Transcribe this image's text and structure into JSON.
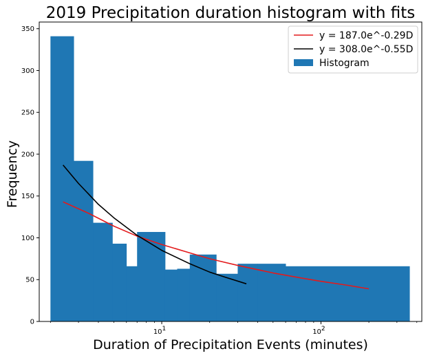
{
  "chart_data": {
    "type": "bar",
    "title": "2019 Precipitation duration histogram with fits",
    "xlabel": "Duration of Precipitation Events (minutes)",
    "ylabel": "Frequency",
    "x_scale": "log",
    "xlim": [
      1.7,
      430
    ],
    "ylim": [
      0,
      358
    ],
    "y_ticks": [
      0,
      50,
      100,
      150,
      200,
      250,
      300,
      350
    ],
    "x_ticks": [
      {
        "value": 10,
        "base": "10",
        "exp": "1"
      },
      {
        "value": 100,
        "base": "10",
        "exp": "2"
      }
    ],
    "grid": false,
    "legend_position": "top-right",
    "histogram": {
      "name": "Histogram",
      "color": "#1f77b4",
      "bins": [
        {
          "x0": 2.0,
          "x1": 2.8,
          "value": 341
        },
        {
          "x0": 2.8,
          "x1": 3.7,
          "value": 192
        },
        {
          "x0": 3.7,
          "x1": 4.9,
          "value": 118
        },
        {
          "x0": 4.9,
          "x1": 6.0,
          "value": 93
        },
        {
          "x0": 6.0,
          "x1": 7.0,
          "value": 66
        },
        {
          "x0": 7.0,
          "x1": 10.5,
          "value": 107
        },
        {
          "x0": 10.5,
          "x1": 12.5,
          "value": 62
        },
        {
          "x0": 12.5,
          "x1": 15.0,
          "value": 63
        },
        {
          "x0": 15.0,
          "x1": 22.0,
          "value": 80
        },
        {
          "x0": 22.0,
          "x1": 30.0,
          "value": 57
        },
        {
          "x0": 30.0,
          "x1": 40.0,
          "value": 69
        },
        {
          "x0": 40.0,
          "x1": 60.0,
          "value": 69
        },
        {
          "x0": 60.0,
          "x1": 360.0,
          "value": 66
        }
      ]
    },
    "series": [
      {
        "name": "y = 187.0e^-0.29D",
        "color": "#e31a1c",
        "x": [
          2.4,
          3.5,
          5,
          7,
          10,
          15,
          20,
          30,
          50,
          75,
          100,
          150,
          200
        ],
        "y": [
          143,
          129,
          114,
          102,
          92,
          82,
          75,
          67,
          58,
          52,
          48,
          43,
          39
        ]
      },
      {
        "name": "y = 308.0e^-0.55D",
        "color": "#000000",
        "x": [
          2.4,
          3,
          4,
          5,
          7,
          10,
          15,
          20,
          25,
          34
        ],
        "y": [
          187,
          165,
          140,
          124,
          103,
          85,
          69,
          59,
          53,
          45
        ]
      }
    ]
  }
}
